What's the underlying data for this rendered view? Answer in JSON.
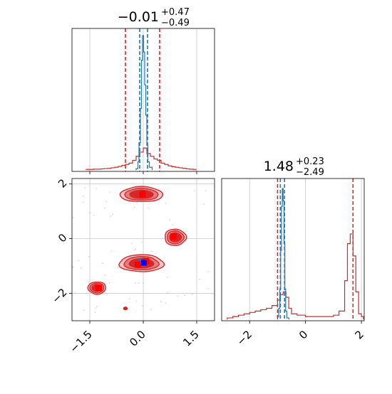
{
  "colors": {
    "red": "#d62728",
    "red_marker": "#ff0000",
    "blue": "#1f77b4",
    "blue_marker": "#0000ff",
    "grid": "#c8c8c8",
    "fill_dark": "#d62728",
    "fill_mid": "#e57c7d",
    "fill_light": "#f3c5c5"
  },
  "panel_titles": {
    "p1_main": "−0.01",
    "p1_sup": "+0.47",
    "p1_sub": "−0.49",
    "p2_main": "1.48",
    "p2_sup": "+0.23",
    "p2_sub": "−2.49"
  },
  "chart_data": [
    {
      "type": "histogram",
      "panel": "param1-marginal",
      "xlim": [
        -2.0,
        2.0
      ],
      "grid": true,
      "title": "−0.01 (+0.47 / −0.49)",
      "quantile_lines": {
        "red": [
          -0.5,
          0.46
        ],
        "blue": [
          -0.1,
          0.12
        ]
      },
      "series": [
        {
          "color": "red",
          "bins": [
            [
              -1.6,
              0.004
            ],
            [
              -1.5,
              0.004
            ],
            [
              -1.4,
              0.006
            ],
            [
              -1.3,
              0.006
            ],
            [
              -1.2,
              0.008
            ],
            [
              -1.1,
              0.01
            ],
            [
              -1.0,
              0.012
            ],
            [
              -0.9,
              0.016
            ],
            [
              -0.8,
              0.02
            ],
            [
              -0.7,
              0.026
            ],
            [
              -0.6,
              0.034
            ],
            [
              -0.5,
              0.04
            ],
            [
              -0.4,
              0.05
            ],
            [
              -0.3,
              0.07
            ],
            [
              -0.2,
              0.1
            ],
            [
              -0.1,
              0.13
            ],
            [
              0.0,
              0.16
            ],
            [
              0.1,
              0.12
            ],
            [
              0.2,
              0.1
            ],
            [
              0.3,
              0.08
            ],
            [
              0.4,
              0.07
            ],
            [
              0.5,
              0.05
            ],
            [
              0.6,
              0.04
            ],
            [
              0.7,
              0.03
            ],
            [
              0.8,
              0.024
            ],
            [
              0.9,
              0.02
            ],
            [
              1.0,
              0.016
            ],
            [
              1.1,
              0.012
            ],
            [
              1.2,
              0.008
            ],
            [
              1.3,
              0.006
            ],
            [
              1.4,
              0.004
            ]
          ]
        },
        {
          "color": "blue",
          "bins": [
            [
              -0.2,
              0.01
            ],
            [
              -0.15,
              0.06
            ],
            [
              -0.12,
              0.2
            ],
            [
              -0.08,
              0.45
            ],
            [
              -0.05,
              0.8
            ],
            [
              -0.02,
              0.98
            ],
            [
              0.01,
              0.86
            ],
            [
              0.04,
              0.62
            ],
            [
              0.07,
              0.4
            ],
            [
              0.1,
              0.18
            ],
            [
              0.13,
              0.06
            ],
            [
              0.17,
              0.02
            ]
          ]
        }
      ]
    },
    {
      "type": "contour",
      "panel": "param1-vs-param2",
      "xlim": [
        -2.0,
        2.0
      ],
      "ylim": [
        -3.0,
        2.2
      ],
      "x_ticks": [
        "−1.5",
        "0.0",
        "1.5"
      ],
      "y_ticks": [
        "−2",
        "0",
        "2"
      ],
      "x_tick_values": [
        -1.5,
        0.0,
        1.5
      ],
      "y_tick_values": [
        -2,
        0,
        2
      ],
      "grid": true,
      "red_modes": [
        {
          "x": -0.05,
          "y": 1.62,
          "rx": 1.2,
          "ry": 0.55
        },
        {
          "x": 0.9,
          "y": 0.05,
          "rx": 0.6,
          "ry": 0.6
        },
        {
          "x": -0.05,
          "y": -0.9,
          "rx": 1.25,
          "ry": 0.62
        },
        {
          "x": -1.3,
          "y": -1.8,
          "rx": 0.5,
          "ry": 0.45
        },
        {
          "x": -0.5,
          "y": -2.55,
          "rx": 0.1,
          "ry": 0.1
        }
      ],
      "red_markers": [
        {
          "x": -0.02,
          "y": 1.62
        },
        {
          "x": 0.85,
          "y": 0.08
        },
        {
          "x": -0.15,
          "y": -0.95
        },
        {
          "x": -1.25,
          "y": -1.8
        },
        {
          "x": 0.08,
          "y": -0.82
        }
      ],
      "blue_mode": {
        "x": 0.0,
        "y": -0.85,
        "rx": 0.3,
        "ry": 0.28
      },
      "blue_marker": {
        "x": 0.02,
        "y": -0.88
      }
    },
    {
      "type": "histogram",
      "panel": "param2-marginal",
      "xlim": [
        -3.0,
        2.1
      ],
      "x_ticks": [
        "−2",
        "0",
        "2"
      ],
      "x_tick_values": [
        -2,
        0,
        2
      ],
      "grid": true,
      "title": "1.48 (+0.23 / −2.49)",
      "quantile_lines": {
        "red": [
          -1.0,
          1.7
        ],
        "blue": [
          -0.9,
          -0.75
        ]
      },
      "series": [
        {
          "color": "red",
          "bins": [
            [
              -2.8,
              0.01
            ],
            [
              -2.6,
              0.02
            ],
            [
              -2.4,
              0.03
            ],
            [
              -2.2,
              0.04
            ],
            [
              -2.0,
              0.05
            ],
            [
              -1.8,
              0.06
            ],
            [
              -1.6,
              0.07
            ],
            [
              -1.4,
              0.08
            ],
            [
              -1.2,
              0.1
            ],
            [
              -1.0,
              0.14
            ],
            [
              -0.9,
              0.18
            ],
            [
              -0.8,
              0.2
            ],
            [
              -0.7,
              0.16
            ],
            [
              -0.6,
              0.08
            ],
            [
              -0.5,
              0.04
            ],
            [
              -0.3,
              0.03
            ],
            [
              0.0,
              0.02
            ],
            [
              0.5,
              0.02
            ],
            [
              1.0,
              0.03
            ],
            [
              1.2,
              0.06
            ],
            [
              1.4,
              0.28
            ],
            [
              1.5,
              0.55
            ],
            [
              1.6,
              0.62
            ],
            [
              1.7,
              0.46
            ],
            [
              1.8,
              0.2
            ],
            [
              1.9,
              0.04
            ],
            [
              2.0,
              0.02
            ]
          ]
        },
        {
          "color": "blue",
          "bins": [
            [
              -1.0,
              0.02
            ],
            [
              -0.96,
              0.08
            ],
            [
              -0.92,
              0.22
            ],
            [
              -0.89,
              0.5
            ],
            [
              -0.86,
              0.82
            ],
            [
              -0.83,
              0.95
            ],
            [
              -0.8,
              0.86
            ],
            [
              -0.77,
              0.55
            ],
            [
              -0.74,
              0.22
            ],
            [
              -0.71,
              0.06
            ],
            [
              -0.67,
              0.01
            ]
          ]
        }
      ]
    }
  ]
}
